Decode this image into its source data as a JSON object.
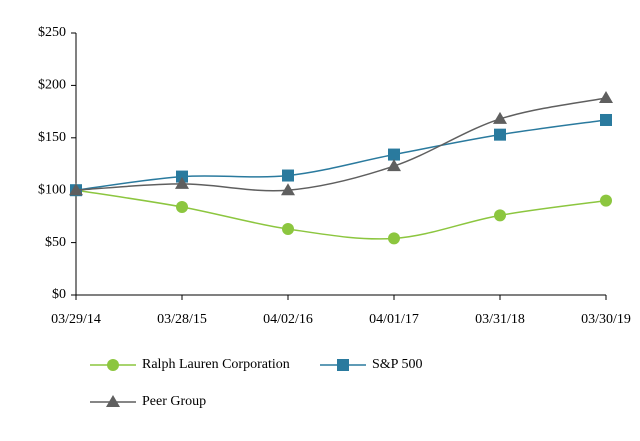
{
  "chart_data": {
    "type": "line",
    "categories": [
      "03/29/14",
      "03/28/15",
      "04/02/16",
      "04/01/17",
      "03/31/18",
      "03/30/19"
    ],
    "series": [
      {
        "name": "Ralph Lauren Corporation",
        "color": "#8cc63f",
        "marker": "circle",
        "values": [
          100,
          84,
          63,
          54,
          76,
          90
        ]
      },
      {
        "name": "S&P 500",
        "color": "#2a7a9e",
        "marker": "square",
        "values": [
          100,
          113,
          114,
          134,
          153,
          167
        ]
      },
      {
        "name": "Peer Group",
        "color": "#5f5f5f",
        "marker": "triangle",
        "values": [
          100,
          106,
          100,
          123,
          168,
          188
        ]
      }
    ],
    "ylim": [
      0,
      250
    ],
    "yticks": [
      {
        "value": 0,
        "label": "$0"
      },
      {
        "value": 50,
        "label": "$50"
      },
      {
        "value": 100,
        "label": "$100"
      },
      {
        "value": 150,
        "label": "$150"
      },
      {
        "value": 200,
        "label": "$200"
      },
      {
        "value": 250,
        "label": "$250"
      }
    ],
    "grid": false,
    "legend": "bottom"
  }
}
